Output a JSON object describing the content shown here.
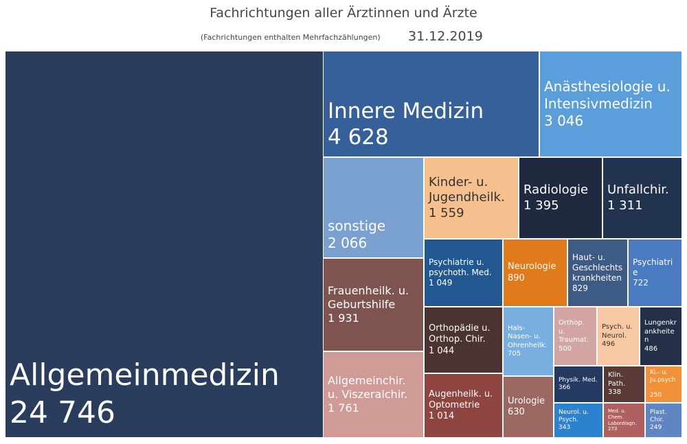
{
  "chart_data": {
    "type": "treemap",
    "title": "Fachrichtungen aller Ärztinnen und Ärzte",
    "subtitle": "(Fachrichtungen enthalten Mehrfachzählungen)",
    "date": "31.12.2019",
    "categories": [
      "Allgemeinmedizin",
      "Innere Medizin",
      "Anästhesiologie u. Intensivmedizin",
      "sonstige",
      "Kinder- u. Jugendheilk.",
      "Radiologie",
      "Unfallchir.",
      "Frauenheilk. u. Geburtshilfe",
      "Allgemeinchir. u. Viszeralchir.",
      "Psychiatrie u. psychoth. Med.",
      "Neurologie",
      "Haut- u. Geschlechtskrankheiten",
      "Psychiatrie",
      "Orthopädie u. Orthop. Chir.",
      "Augenheilk. u. Optometrie",
      "Hals- Nasen- u. Ohrenheilk.",
      "Urologie",
      "Orthop. u. Traumat.",
      "Psych. u. Neurol.",
      "Lungenkrankheiten",
      "Physik. Med.",
      "Neurol. u. Psych.",
      "Klin. Path.",
      "Med. u. Chem. Labordiagn.",
      "Ki.- u. Ju.psych.",
      "Plast. Chir."
    ],
    "values": [
      24746,
      4628,
      3046,
      2066,
      1559,
      1395,
      1311,
      1931,
      1761,
      1049,
      890,
      829,
      722,
      1044,
      1014,
      705,
      630,
      500,
      496,
      486,
      366,
      343,
      338,
      273,
      250,
      249
    ],
    "value_labels": [
      "24 746",
      "4 628",
      "3 046",
      "2 066",
      "1 559",
      "1 395",
      "1 311",
      "1 931",
      "1 761",
      "1 049",
      "890",
      "829",
      "722",
      "1 044",
      "1 014",
      "705",
      "630",
      "500",
      "496",
      "486",
      "366",
      "343",
      "338",
      "273",
      "250",
      "249"
    ],
    "colors": [
      "#2b3d5c",
      "#36609a",
      "#5a9edb",
      "#7aa0cf",
      "#f6c08e",
      "#1f2a40",
      "#223350",
      "#7f5450",
      "#d09a96",
      "#22588f",
      "#e07a1a",
      "#3e5b86",
      "#4a7ac0",
      "#4b3331",
      "#8e4540",
      "#79aee0",
      "#9d6862",
      "#d2a4a2",
      "#f7c8a2",
      "#233048",
      "#243a60",
      "#2d82d0",
      "#5a3a36",
      "#b16060",
      "#f0913a",
      "#5f86c3"
    ]
  }
}
